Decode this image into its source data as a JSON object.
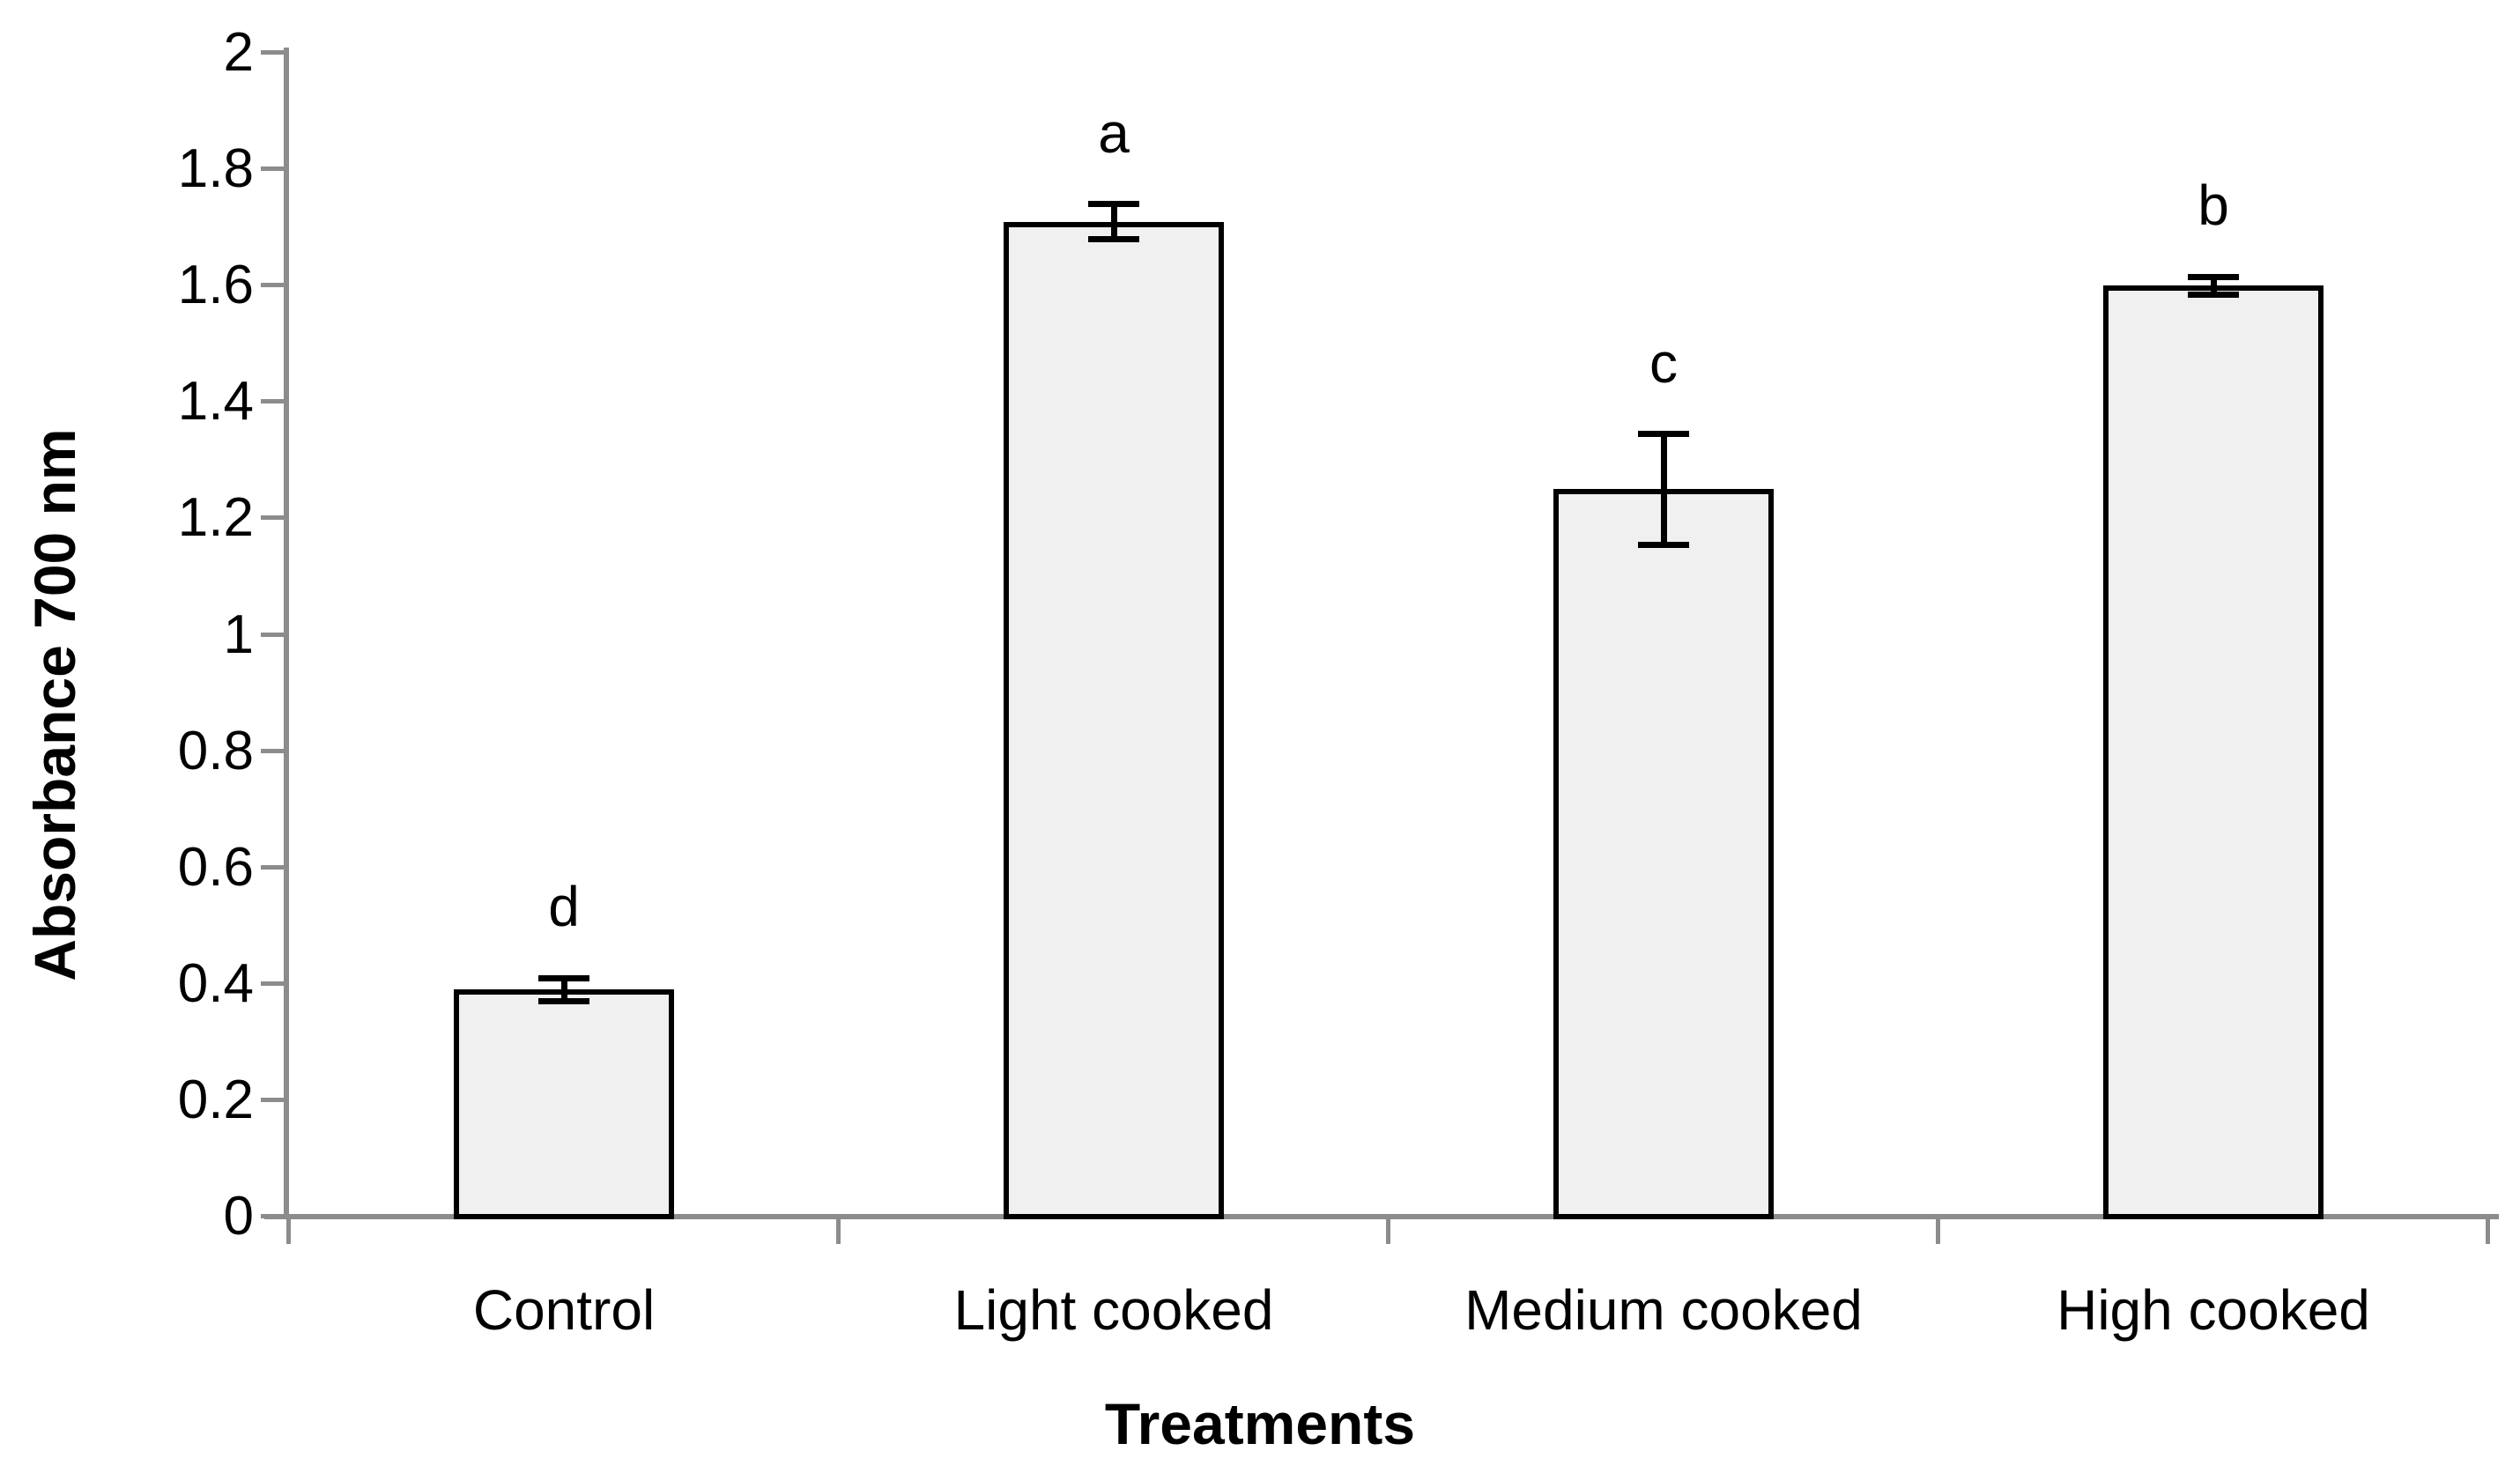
{
  "figure": {
    "y_axis_title": "Absorbance 700 nm",
    "x_axis_title": "Treatments"
  },
  "chart_data": {
    "type": "bar",
    "title": "",
    "xlabel": "Treatments",
    "ylabel": "Absorbance 700 nm",
    "categories": [
      "Control",
      "Light cooked",
      "Medium cooked",
      "High cooked"
    ],
    "values": [
      0.39,
      1.71,
      1.25,
      1.6
    ],
    "error_bars": [
      0.02,
      0.03,
      0.095,
      0.015
    ],
    "significance_letters": [
      "d",
      "a",
      "c",
      "b"
    ],
    "ylim": [
      0,
      2
    ],
    "ytick_step": 0.2,
    "ytick_labels": [
      "0",
      "0.2",
      "0.4",
      "0.6",
      "0.8",
      "1",
      "1.2",
      "1.4",
      "1.6",
      "1.8",
      "2"
    ],
    "grid": false,
    "legend_position": "none",
    "colors": {
      "bar_fill": "#f0f0f0",
      "bar_border": "#000000",
      "axis": "#8c8c8c",
      "text": "#000000"
    }
  }
}
